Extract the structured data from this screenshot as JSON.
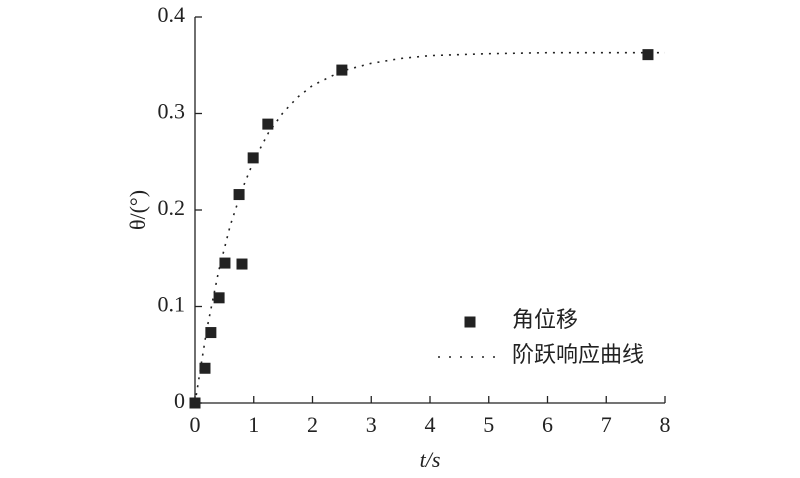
{
  "chart_data": {
    "type": "scatter",
    "xlabel": "t/s",
    "ylabel": "θ/(°)",
    "xlim": [
      0,
      8
    ],
    "xticks": [
      0,
      1,
      2,
      3,
      4,
      5,
      6,
      7,
      8
    ],
    "ylim": [
      0,
      0.4
    ],
    "yticks": [
      0,
      0.1,
      0.2,
      0.3,
      0.4
    ],
    "legend": "lower right",
    "series": [
      {
        "name": "角位移",
        "color": "#222222",
        "kind": "points",
        "x": [
          0,
          0.17,
          0.27,
          0.41,
          0.51,
          0.8,
          0.75,
          0.99,
          1.24,
          2.5,
          7.71
        ],
        "values": [
          0,
          0.036,
          0.073,
          0.109,
          0.145,
          0.144,
          0.216,
          0.254,
          0.289,
          0.345,
          0.361
        ]
      },
      {
        "name": "阶跃响应曲线",
        "color": "#222222",
        "kind": "dotted-line",
        "x": [
          0,
          0.2,
          0.4,
          0.6,
          0.8,
          1.0,
          1.25,
          1.5,
          1.75,
          2,
          2.5,
          3,
          3.5,
          4,
          5,
          6,
          7,
          8
        ],
        "values": [
          0,
          0.076,
          0.136,
          0.184,
          0.221,
          0.251,
          0.28,
          0.301,
          0.317,
          0.329,
          0.344,
          0.352,
          0.357,
          0.36,
          0.362,
          0.363,
          0.363,
          0.363
        ]
      }
    ]
  }
}
